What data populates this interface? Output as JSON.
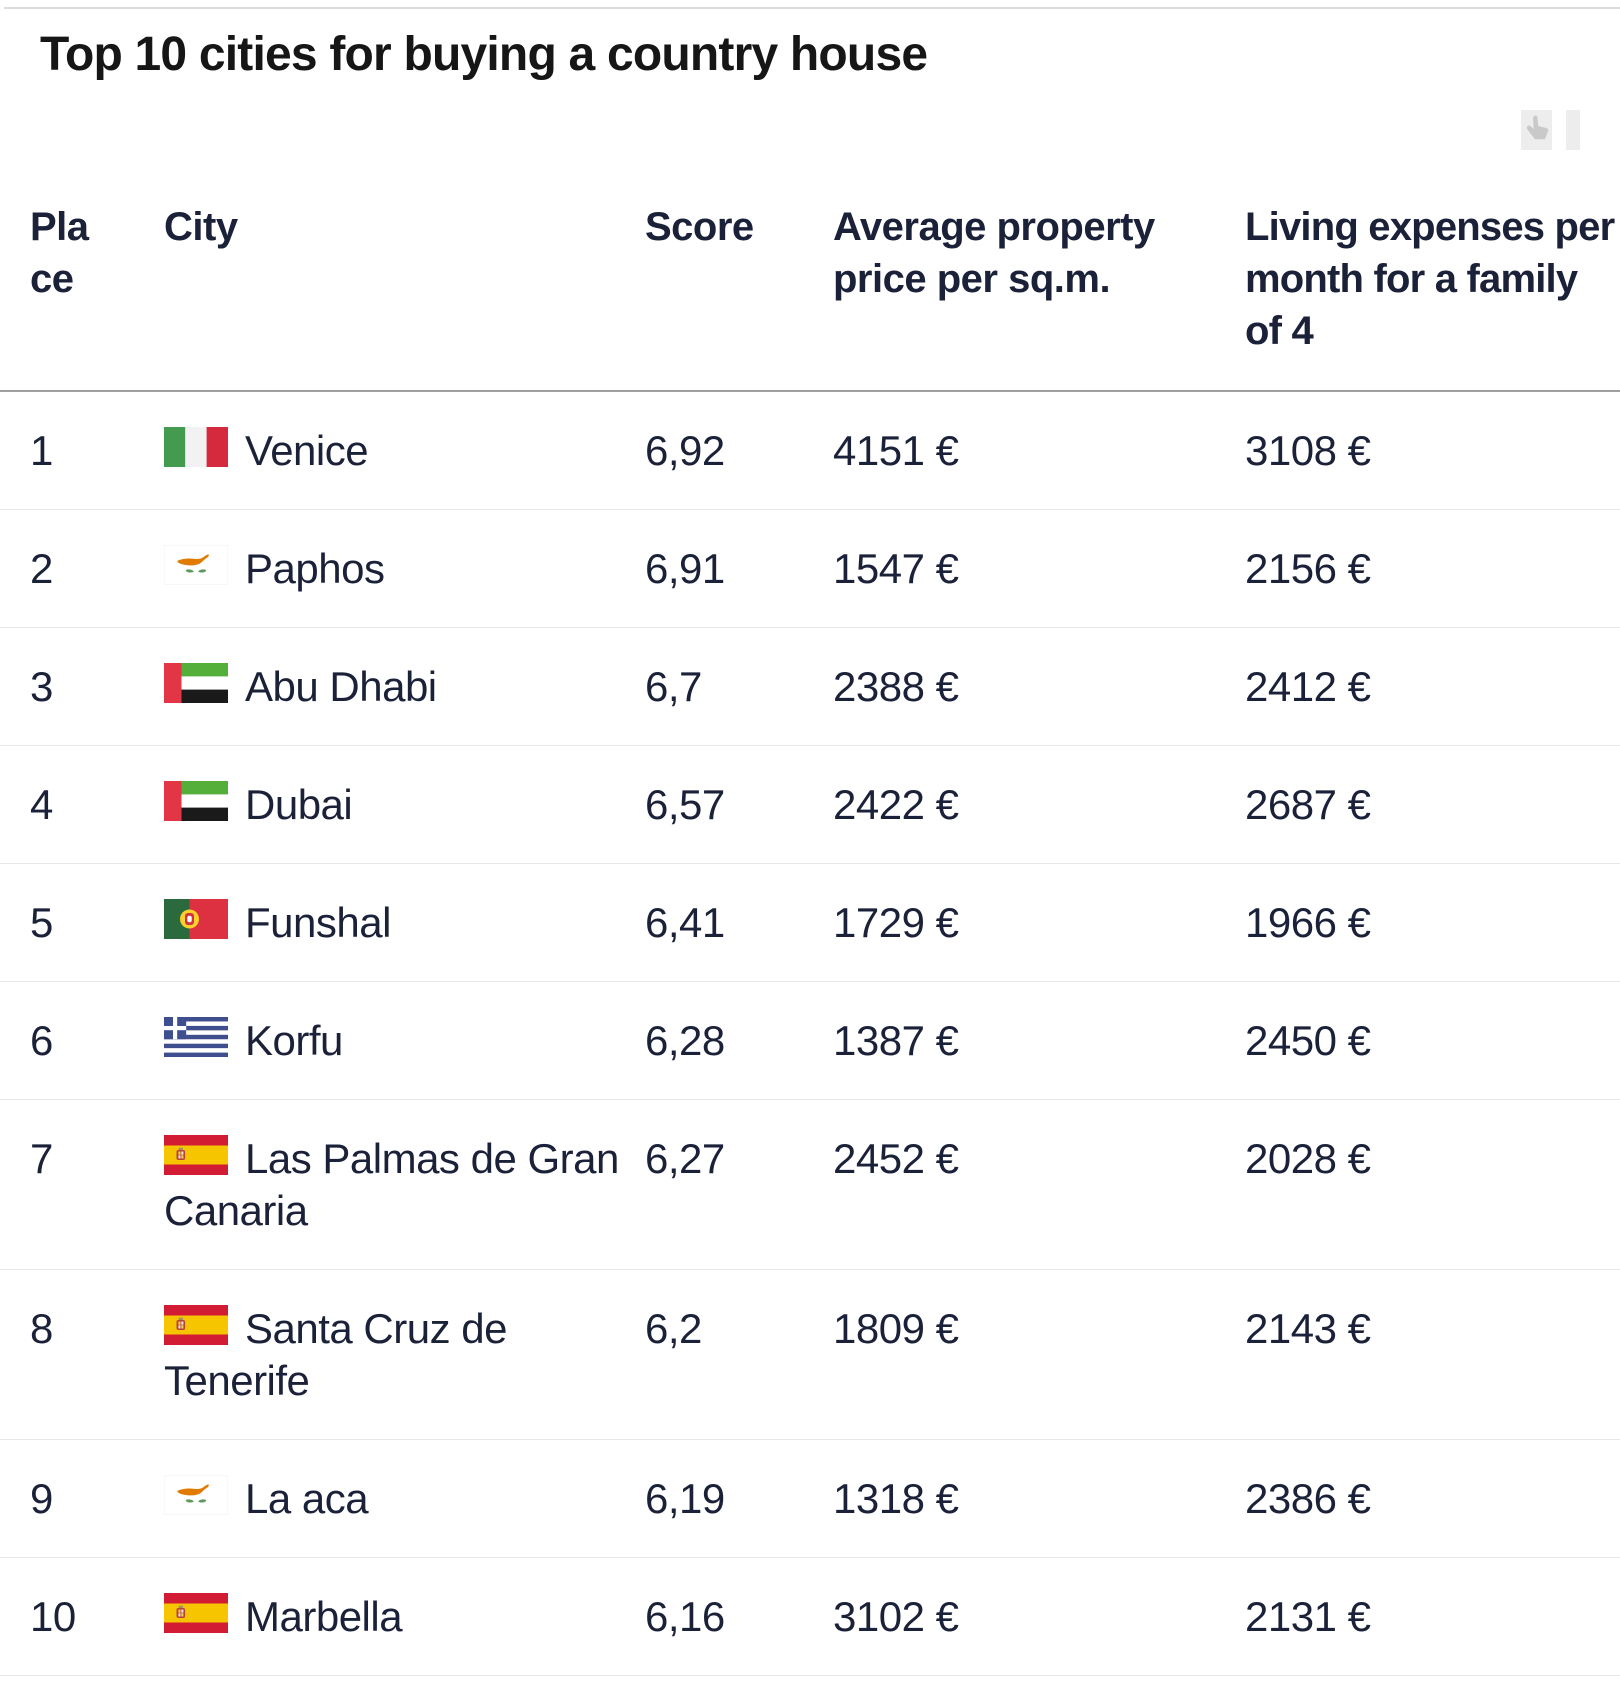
{
  "title": "Top 10 cities for buying a country house",
  "actions": {
    "pointer_icon": "pointing-hand-reaction"
  },
  "table": {
    "headers": {
      "place": "Place",
      "city": "City",
      "score": "Score",
      "price": "Average property price per sq.m.",
      "living": "Living expenses per month for a family of 4"
    },
    "rows": [
      {
        "place": "1",
        "city": "Venice",
        "country": "italy",
        "score": "6,92",
        "price": "4151 €",
        "living": "3108 €"
      },
      {
        "place": "2",
        "city": "Paphos",
        "country": "cyprus",
        "score": "6,91",
        "price": "1547 €",
        "living": "2156 €"
      },
      {
        "place": "3",
        "city": "Abu Dhabi",
        "country": "uae",
        "score": "6,7",
        "price": "2388 €",
        "living": "2412 €"
      },
      {
        "place": "4",
        "city": "Dubai",
        "country": "uae",
        "score": "6,57",
        "price": "2422 €",
        "living": "2687 €"
      },
      {
        "place": "5",
        "city": "Funshal",
        "country": "portugal",
        "score": "6,41",
        "price": "1729 €",
        "living": "1966 €"
      },
      {
        "place": "6",
        "city": "Korfu",
        "country": "greece",
        "score": "6,28",
        "price": "1387 €",
        "living": "2450 €"
      },
      {
        "place": "7",
        "city": "Las Palmas de Gran Canaria",
        "country": "spain",
        "score": "6,27",
        "price": "2452 €",
        "living": "2028 €"
      },
      {
        "place": "8",
        "city": "Santa Cruz de Tenerife",
        "country": "spain",
        "score": "6,2",
        "price": "1809 €",
        "living": "2143 €"
      },
      {
        "place": "9",
        "city": "La aca",
        "country": "cyprus",
        "score": "6,19",
        "price": "1318 €",
        "living": "2386 €"
      },
      {
        "place": "10",
        "city": "Marbella",
        "country": "spain",
        "score": "6,16",
        "price": "3102 €",
        "living": "2131 €"
      }
    ]
  },
  "colors": {
    "text": "#1b2138",
    "title": "#161616",
    "row_divider": "#e7e7e7",
    "header_divider": "#9f9f9f",
    "icon_box": "#ededed",
    "icon_glyph": "#c9c9c9"
  }
}
